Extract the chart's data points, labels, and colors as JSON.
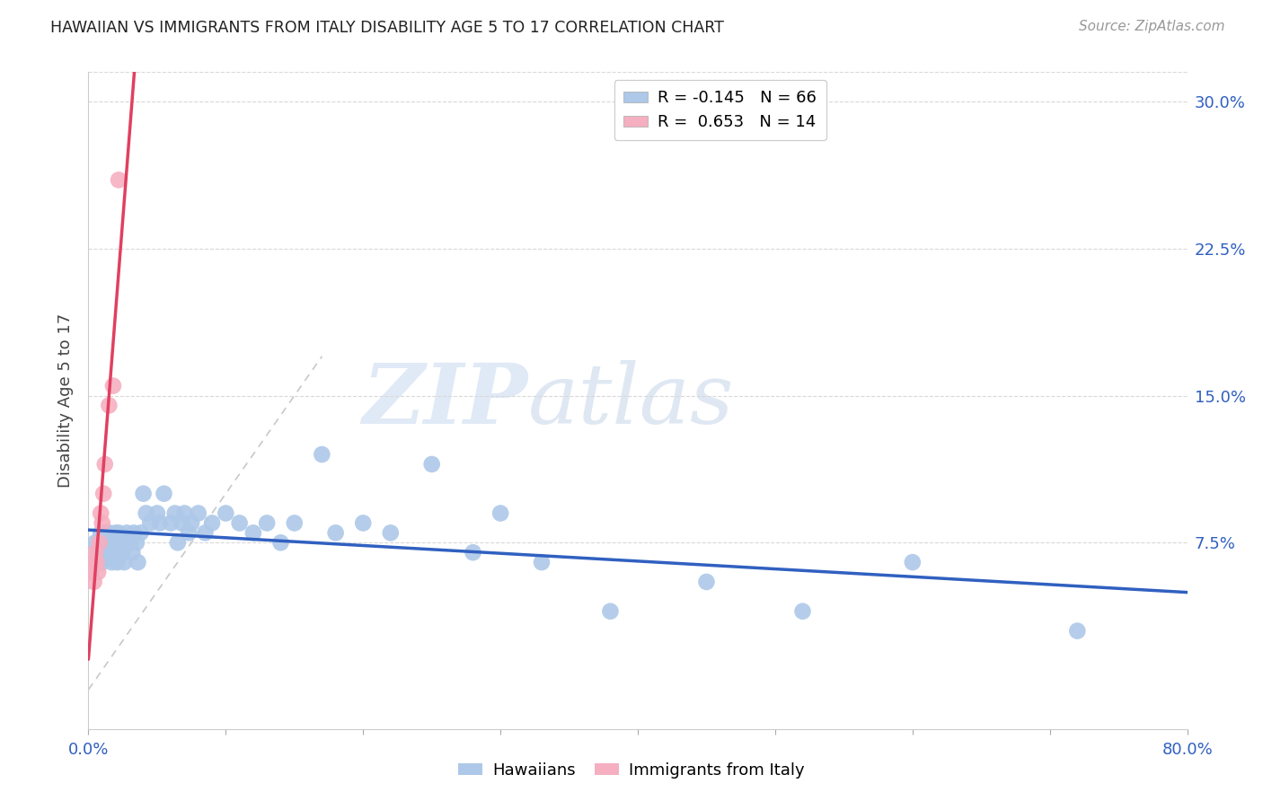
{
  "title": "HAWAIIAN VS IMMIGRANTS FROM ITALY DISABILITY AGE 5 TO 17 CORRELATION CHART",
  "source": "Source: ZipAtlas.com",
  "ylabel": "Disability Age 5 to 17",
  "watermark_zip": "ZIP",
  "watermark_atlas": "atlas",
  "blue_color": "#adc8e8",
  "pink_color": "#f5afc0",
  "line_blue": "#3060c0",
  "line_pink": "#e04060",
  "line_dashed_color": "#c8c8c8",
  "grid_color": "#d8d8d8",
  "title_color": "#222222",
  "source_color": "#999999",
  "axis_label_color": "#3060c0",
  "ylabel_color": "#444444",
  "xmin": 0.0,
  "xmax": 0.8,
  "ymin": -0.02,
  "ymax": 0.315,
  "ytick_values": [
    0.0,
    0.075,
    0.15,
    0.225,
    0.3
  ],
  "ytick_labels": [
    "",
    "7.5%",
    "15.0%",
    "22.5%",
    "30.0%"
  ],
  "xtick_values": [
    0.0,
    0.1,
    0.2,
    0.3,
    0.4,
    0.5,
    0.6,
    0.7,
    0.8
  ],
  "xtick_labels": [
    "0.0%",
    "",
    "",
    "",
    "",
    "",
    "",
    "",
    "80.0%"
  ],
  "legend_blue_r": "-0.145",
  "legend_blue_n": "66",
  "legend_pink_r": "0.653",
  "legend_pink_n": "14",
  "hawaiians_x": [
    0.005,
    0.007,
    0.008,
    0.009,
    0.01,
    0.01,
    0.01,
    0.012,
    0.013,
    0.015,
    0.015,
    0.016,
    0.017,
    0.018,
    0.019,
    0.02,
    0.02,
    0.021,
    0.022,
    0.023,
    0.025,
    0.025,
    0.026,
    0.027,
    0.028,
    0.03,
    0.032,
    0.033,
    0.035,
    0.036,
    0.038,
    0.04,
    0.042,
    0.045,
    0.05,
    0.052,
    0.055,
    0.06,
    0.063,
    0.065,
    0.068,
    0.07,
    0.073,
    0.075,
    0.08,
    0.085,
    0.09,
    0.1,
    0.11,
    0.12,
    0.13,
    0.14,
    0.15,
    0.17,
    0.18,
    0.2,
    0.22,
    0.25,
    0.28,
    0.3,
    0.33,
    0.38,
    0.45,
    0.52,
    0.6,
    0.72
  ],
  "hawaiians_y": [
    0.075,
    0.07,
    0.065,
    0.08,
    0.075,
    0.07,
    0.065,
    0.08,
    0.075,
    0.08,
    0.075,
    0.07,
    0.065,
    0.075,
    0.07,
    0.08,
    0.075,
    0.065,
    0.08,
    0.07,
    0.075,
    0.07,
    0.065,
    0.075,
    0.08,
    0.075,
    0.07,
    0.08,
    0.075,
    0.065,
    0.08,
    0.1,
    0.09,
    0.085,
    0.09,
    0.085,
    0.1,
    0.085,
    0.09,
    0.075,
    0.085,
    0.09,
    0.08,
    0.085,
    0.09,
    0.08,
    0.085,
    0.09,
    0.085,
    0.08,
    0.085,
    0.075,
    0.085,
    0.12,
    0.08,
    0.085,
    0.08,
    0.115,
    0.07,
    0.09,
    0.065,
    0.04,
    0.055,
    0.04,
    0.065,
    0.03
  ],
  "italy_x": [
    0.002,
    0.003,
    0.004,
    0.005,
    0.006,
    0.007,
    0.008,
    0.009,
    0.01,
    0.011,
    0.012,
    0.015,
    0.018,
    0.022
  ],
  "italy_y": [
    0.06,
    0.065,
    0.055,
    0.07,
    0.065,
    0.06,
    0.075,
    0.09,
    0.085,
    0.1,
    0.115,
    0.145,
    0.155,
    0.26
  ]
}
